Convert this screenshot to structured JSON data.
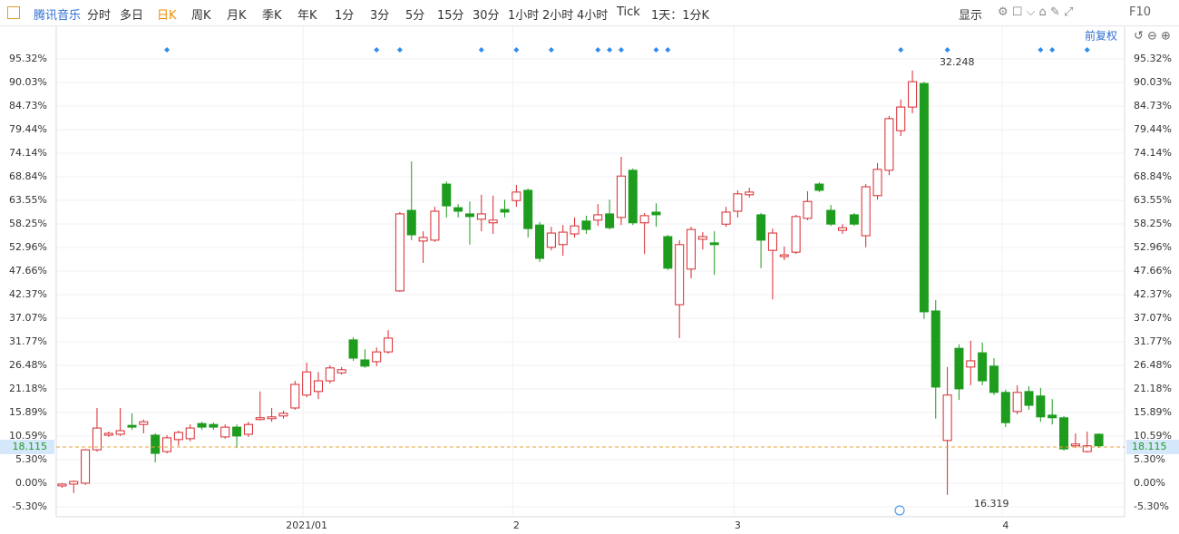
{
  "toolbar": {
    "stock": "腾讯音乐",
    "periods": [
      "分时",
      "多日",
      "日K",
      "周K",
      "月K",
      "季K",
      "年K",
      "1分",
      "3分",
      "5分",
      "15分",
      "30分",
      "1小时",
      "2小时",
      "4小时",
      "Tick"
    ],
    "active": "日K",
    "range": "1天：1分K",
    "display": "显示",
    "f10": "F10",
    "adjust": "前复权"
  },
  "chart_data": {
    "type": "candlestick",
    "categories": [
      null,
      null,
      null,
      null,
      null,
      null,
      null,
      null,
      null,
      null,
      null,
      null,
      null,
      null,
      null,
      null,
      null,
      null,
      null,
      null,
      null,
      "2021/01",
      null,
      null,
      null,
      null,
      null,
      null,
      null,
      null,
      null,
      null,
      null,
      null,
      null,
      null,
      null,
      null,
      null,
      "2",
      null,
      null,
      null,
      null,
      null,
      null,
      null,
      null,
      null,
      null,
      null,
      null,
      null,
      null,
      null,
      null,
      null,
      null,
      "3",
      null,
      null,
      null,
      null,
      null,
      null,
      null,
      null,
      null,
      null,
      null,
      null,
      null,
      null,
      null,
      null,
      null,
      null,
      null,
      null,
      null,
      null,
      "4",
      null,
      null,
      null,
      null,
      null,
      null,
      null,
      null
    ],
    "open": [
      -0.6,
      -0.2,
      0,
      7.5,
      10.8,
      11,
      13,
      13.2,
      10.8,
      7.1,
      9.8,
      10,
      13.4,
      13.2,
      10.4,
      12.6,
      11,
      14.3,
      14.5,
      15.1,
      16.9,
      19.8,
      20.6,
      23,
      24.8,
      32.2,
      27.7,
      27.3,
      29.5,
      43.2,
      61.3,
      54.4,
      54.6,
      67.2,
      61.9,
      60.5,
      59.3,
      58.5,
      61.5,
      63.5,
      65.8,
      58,
      53,
      53.6,
      56,
      58.9,
      59.1,
      60.5,
      59.7,
      70.3,
      58.5,
      60.9,
      55.4,
      40.1,
      48.1,
      54.8,
      54,
      58.2,
      61.1,
      64.8,
      60.3,
      52.3,
      50.9,
      51.9,
      59.5,
      67.2,
      61.3,
      56.8,
      60.3,
      55.6,
      64.6,
      70.3,
      79.2,
      84.5,
      89.8,
      38.7,
      9.6,
      30.3,
      26.1,
      29.3,
      26.3,
      20.4,
      16.1,
      20.6,
      19.6,
      15.3,
      14.7,
      8.4,
      7.1,
      11
    ],
    "high": [
      0,
      0.6,
      7.7,
      16.9,
      11.6,
      16.9,
      15.7,
      14.3,
      11.2,
      10.8,
      11.8,
      13.2,
      13.8,
      13.6,
      13.2,
      13.2,
      13.8,
      20.6,
      16.9,
      16.3,
      23,
      27.1,
      25,
      26.5,
      26.1,
      32.8,
      30.1,
      30.5,
      34.4,
      60.9,
      72.3,
      56.6,
      62.1,
      67.8,
      62.7,
      63.3,
      64.8,
      64.6,
      63.7,
      67,
      66.2,
      58.7,
      57.6,
      58,
      59.7,
      60.1,
      62.7,
      63.7,
      73.3,
      70.7,
      60.7,
      62.9,
      55.8,
      54.6,
      57.6,
      56.4,
      56.6,
      62.1,
      65.8,
      66.4,
      60.7,
      57.2,
      53.2,
      60.3,
      65.6,
      67.6,
      62.5,
      58.2,
      60.7,
      67.2,
      71.9,
      82.5,
      86.2,
      92.7,
      90.2,
      41.1,
      26.1,
      31.2,
      32,
      31.6,
      28.1,
      21,
      22,
      21.8,
      21.4,
      18.9,
      15.1,
      11.2,
      11.6,
      11.2
    ],
    "low": [
      -1,
      -2.2,
      -0.4,
      7.1,
      10.4,
      10.6,
      12,
      11.2,
      4.7,
      6.7,
      8.4,
      9.4,
      12,
      12,
      10,
      7.9,
      10.4,
      14.1,
      13.8,
      14.5,
      16.5,
      19.3,
      18.9,
      22.4,
      24.4,
      27.5,
      25.9,
      26.3,
      29.1,
      43,
      54.6,
      49.5,
      54.2,
      59.7,
      59.7,
      53.6,
      56.6,
      56,
      59.7,
      62.1,
      55.2,
      49.7,
      52.3,
      51.1,
      55.2,
      56,
      57.8,
      57,
      58,
      58,
      51.5,
      57.6,
      47.9,
      32.6,
      46,
      52.5,
      46.8,
      57.6,
      59.7,
      64.2,
      48.3,
      41.3,
      50.1,
      51.5,
      59.1,
      65.4,
      57.8,
      56,
      57.8,
      53,
      63.7,
      69.2,
      78,
      83.1,
      36.9,
      14.5,
      -2.6,
      18.7,
      22,
      22,
      19.8,
      12.6,
      15.5,
      16.5,
      13.8,
      13.2,
      7.3,
      7.9,
      6.9,
      7.9
    ],
    "close": [
      -0.2,
      0.4,
      7.5,
      12.4,
      11.2,
      11.8,
      12.6,
      13.8,
      6.7,
      10.2,
      11.4,
      12.4,
      12.6,
      12.6,
      12.6,
      10.6,
      13.2,
      14.7,
      14.9,
      15.7,
      22.2,
      25,
      23,
      25.9,
      25.5,
      28.1,
      26.3,
      29.5,
      32.6,
      60.5,
      55.8,
      55.2,
      61.1,
      62.3,
      61.1,
      59.9,
      60.5,
      59.1,
      60.9,
      65.4,
      57.2,
      50.5,
      56.2,
      56.4,
      57.8,
      57,
      60.3,
      57.4,
      69,
      58.5,
      60.1,
      60.3,
      48.3,
      53.6,
      57,
      55.4,
      53.6,
      60.9,
      65,
      65.4,
      54.6,
      56.2,
      51.3,
      59.9,
      63.3,
      65.8,
      58.2,
      57.4,
      58.2,
      66.6,
      70.5,
      81.9,
      84.5,
      90.2,
      38.5,
      21.6,
      19.8,
      21.2,
      27.5,
      23,
      20.4,
      13.6,
      20.4,
      17.5,
      14.9,
      14.7,
      7.7,
      8.8,
      8.4,
      8.4
    ],
    "up_color": "#d7282e",
    "down_color": "#1e9c1e",
    "event_markers": [
      9,
      27,
      29,
      36,
      39,
      42,
      46,
      47,
      48,
      51,
      52,
      72,
      76,
      84,
      85,
      88
    ],
    "event_color": "#2f8cf0",
    "last_price": {
      "value": 8.15,
      "label": "18.115"
    },
    "annotations": [
      "32.248",
      "16.319"
    ],
    "ylim": [
      -7.54,
      98.98
    ],
    "yticks": [
      {
        "value": 95.32,
        "label": "95.32%"
      },
      {
        "value": 90.03,
        "label": "90.03%"
      },
      {
        "value": 84.73,
        "label": "84.73%"
      },
      {
        "value": 79.44,
        "label": "79.44%"
      },
      {
        "value": 74.14,
        "label": "74.14%"
      },
      {
        "value": 68.84,
        "label": "68.84%"
      },
      {
        "value": 63.55,
        "label": "63.55%"
      },
      {
        "value": 58.25,
        "label": "58.25%"
      },
      {
        "value": 52.96,
        "label": "52.96%"
      },
      {
        "value": 47.66,
        "label": "47.66%"
      },
      {
        "value": 42.37,
        "label": "42.37%"
      },
      {
        "value": 37.07,
        "label": "37.07%"
      },
      {
        "value": 31.77,
        "label": "31.77%"
      },
      {
        "value": 26.48,
        "label": "26.48%"
      },
      {
        "value": 21.18,
        "label": "21.18%"
      },
      {
        "value": 15.89,
        "label": "15.89%"
      },
      {
        "value": 10.59,
        "label": "10.59%"
      },
      {
        "value": 5.3,
        "label": "5.30%"
      },
      {
        "value": 0,
        "label": "0.00%"
      },
      {
        "value": -5.3,
        "label": "-5.30%"
      }
    ],
    "grid": true
  }
}
